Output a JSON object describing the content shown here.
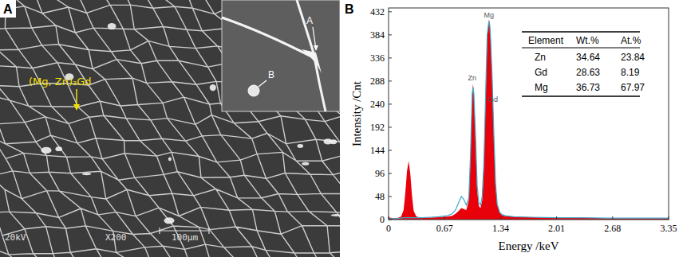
{
  "micrograph": {
    "panel_label": "A",
    "phase_label": "(Mg, Zn)₃Gd",
    "inset_labels": [
      "A",
      "B"
    ],
    "info": [
      "20kV",
      "X200",
      "100μm"
    ]
  },
  "chart_data": {
    "type": "area",
    "panel_label": "B",
    "x_label": "Energy /keV",
    "y_label": "Intensity /Cnt",
    "grid": false,
    "x": [
      0,
      0.05,
      0.1,
      0.15,
      0.18,
      0.2,
      0.22,
      0.24,
      0.26,
      0.28,
      0.3,
      0.33,
      0.36,
      0.4,
      0.5,
      0.6,
      0.7,
      0.76,
      0.8,
      0.84,
      0.87,
      0.9,
      0.93,
      0.96,
      0.98,
      1.0,
      1.01,
      1.02,
      1.04,
      1.06,
      1.08,
      1.1,
      1.12,
      1.14,
      1.16,
      1.18,
      1.2,
      1.21,
      1.22,
      1.24,
      1.26,
      1.28,
      1.3,
      1.33,
      1.36,
      1.4,
      1.5,
      1.7,
      2.0,
      2.3,
      2.6,
      2.9,
      3.2,
      3.35
    ],
    "series": [
      {
        "type": "area",
        "color": "#e8000b",
        "values": [
          5,
          3,
          3,
          6,
          20,
          55,
          100,
          122,
          95,
          50,
          18,
          7,
          5,
          4,
          4,
          5,
          6,
          8,
          12,
          18,
          24,
          22,
          20,
          40,
          130,
          262,
          282,
          265,
          170,
          60,
          28,
          24,
          40,
          110,
          250,
          380,
          416,
          410,
          380,
          290,
          170,
          70,
          30,
          14,
          9,
          7,
          6,
          5,
          4,
          4,
          3,
          3,
          3,
          3
        ]
      },
      {
        "type": "line",
        "color": "#3fa9c9",
        "values": [
          2,
          2,
          2,
          3,
          4,
          4,
          4,
          4,
          4,
          4,
          4,
          4,
          4,
          4,
          5,
          6,
          8,
          12,
          20,
          36,
          48,
          42,
          30,
          45,
          135,
          260,
          275,
          262,
          175,
          70,
          35,
          30,
          48,
          120,
          255,
          385,
          412,
          405,
          378,
          292,
          175,
          75,
          32,
          15,
          10,
          8,
          6,
          5,
          4,
          4,
          3,
          3,
          3,
          3
        ]
      }
    ],
    "xlim": [
      0,
      3.35
    ],
    "xticks": [
      0,
      0.67,
      1.34,
      2.01,
      2.68,
      3.35
    ],
    "ylim": [
      0,
      440
    ],
    "yticks": [
      0,
      48,
      96,
      144,
      192,
      240,
      288,
      336,
      384,
      432
    ],
    "annotations": [
      {
        "text": "Mg",
        "x": 1.2,
        "y": 420
      },
      {
        "text": "Zn",
        "x": 1.0,
        "y": 290
      },
      {
        "text": "Gd",
        "x": 1.25,
        "y": 245
      }
    ],
    "table": {
      "header": [
        "Element",
        "Wt.%",
        "At.%"
      ],
      "rows": [
        [
          "Zn",
          34.64,
          23.84
        ],
        [
          "Gd",
          28.63,
          8.19
        ],
        [
          "Mg",
          36.73,
          67.97
        ]
      ]
    }
  }
}
